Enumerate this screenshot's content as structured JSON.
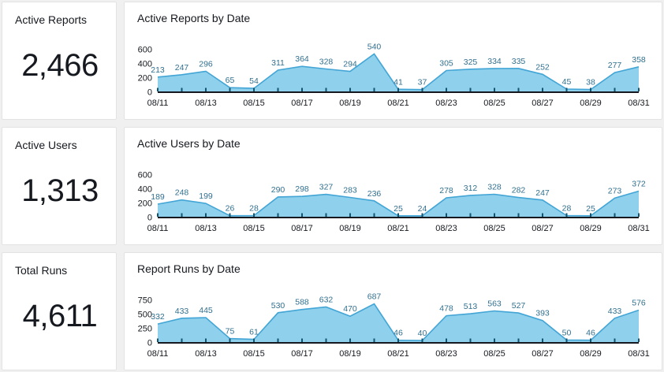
{
  "kpis": [
    {
      "title": "Active Reports",
      "value": "2,466"
    },
    {
      "title": "Active Users",
      "value": "1,313"
    },
    {
      "title": "Total Runs",
      "value": "4,611"
    }
  ],
  "colors": {
    "area_fill": "#8fd0ec",
    "line": "#42a5d5",
    "data_label": "#31708f",
    "axis": "#16191f",
    "tick": "#16536d",
    "card_background": "#ffffff",
    "card_border": "#e3e3e3",
    "page_background": "#f0f0f0"
  },
  "chart_data": [
    {
      "type": "area",
      "title": "Active Reports by Date",
      "x": [
        "08/11",
        "08/12",
        "08/13",
        "08/14",
        "08/15",
        "08/16",
        "08/17",
        "08/18",
        "08/19",
        "08/20",
        "08/21",
        "08/22",
        "08/23",
        "08/24",
        "08/25",
        "08/26",
        "08/27",
        "08/28",
        "08/29",
        "08/30",
        "08/31"
      ],
      "values": [
        213,
        247,
        296,
        65,
        54,
        311,
        364,
        328,
        294,
        540,
        41,
        37,
        305,
        325,
        334,
        335,
        252,
        45,
        38,
        277,
        358
      ],
      "x_tick_labels": [
        "08/11",
        "08/13",
        "08/15",
        "08/17",
        "08/19",
        "08/21",
        "08/23",
        "08/25",
        "08/27",
        "08/29",
        "08/31"
      ],
      "yticks": [
        0,
        200,
        400,
        600
      ],
      "ylim": [
        0,
        600
      ],
      "xlabel": "",
      "ylabel": "",
      "grid": false,
      "legend": "none",
      "data_labels": true
    },
    {
      "type": "area",
      "title": "Active Users by Date",
      "x": [
        "08/11",
        "08/12",
        "08/13",
        "08/14",
        "08/15",
        "08/16",
        "08/17",
        "08/18",
        "08/19",
        "08/20",
        "08/21",
        "08/22",
        "08/23",
        "08/24",
        "08/25",
        "08/26",
        "08/27",
        "08/28",
        "08/29",
        "08/30",
        "08/31"
      ],
      "values": [
        189,
        248,
        199,
        26,
        28,
        290,
        298,
        327,
        283,
        236,
        25,
        24,
        278,
        312,
        328,
        282,
        247,
        28,
        25,
        273,
        372
      ],
      "x_tick_labels": [
        "08/11",
        "08/13",
        "08/15",
        "08/17",
        "08/19",
        "08/21",
        "08/23",
        "08/25",
        "08/27",
        "08/29",
        "08/31"
      ],
      "yticks": [
        0,
        200,
        400,
        600
      ],
      "ylim": [
        0,
        600
      ],
      "xlabel": "",
      "ylabel": "",
      "grid": false,
      "legend": "none",
      "data_labels": true
    },
    {
      "type": "area",
      "title": "Report Runs by Date",
      "x": [
        "08/11",
        "08/12",
        "08/13",
        "08/14",
        "08/15",
        "08/16",
        "08/17",
        "08/18",
        "08/19",
        "08/20",
        "08/21",
        "08/22",
        "08/23",
        "08/24",
        "08/25",
        "08/26",
        "08/27",
        "08/28",
        "08/29",
        "08/30",
        "08/31"
      ],
      "values": [
        332,
        433,
        445,
        75,
        61,
        530,
        588,
        632,
        470,
        687,
        46,
        40,
        478,
        513,
        563,
        527,
        393,
        50,
        46,
        433,
        576
      ],
      "x_tick_labels": [
        "08/11",
        "08/13",
        "08/15",
        "08/17",
        "08/19",
        "08/21",
        "08/23",
        "08/25",
        "08/27",
        "08/29",
        "08/31"
      ],
      "yticks": [
        0,
        250,
        500,
        750
      ],
      "ylim": [
        0,
        750
      ],
      "xlabel": "",
      "ylabel": "",
      "grid": false,
      "legend": "none",
      "data_labels": true
    }
  ]
}
